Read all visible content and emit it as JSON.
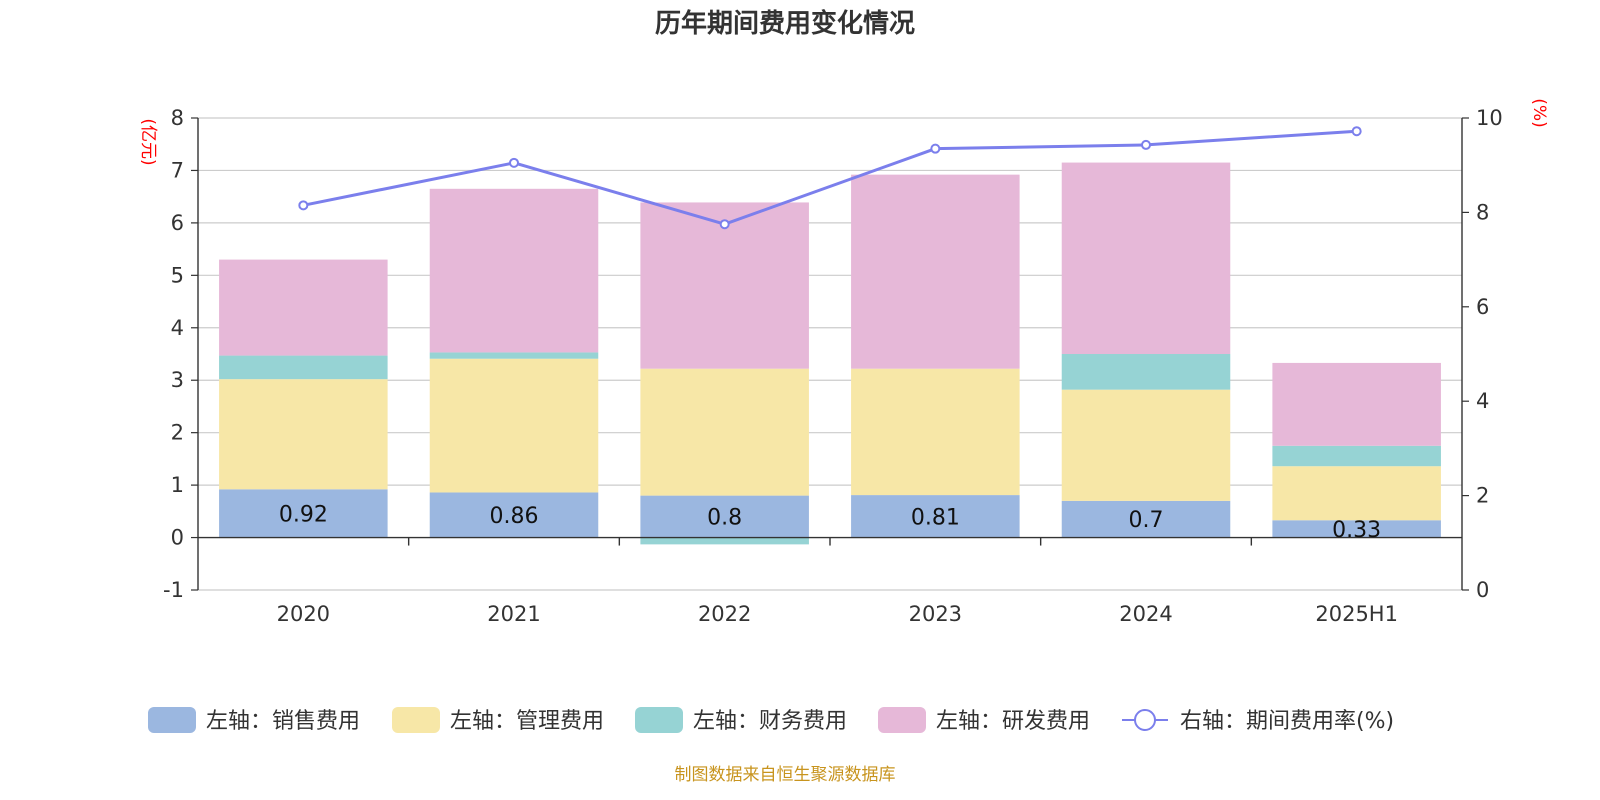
{
  "title": "历年期间费用变化情况",
  "source_note": "制图数据来自恒生聚源数据库",
  "chart_data": {
    "type": "bar",
    "stacked": true,
    "categories": [
      "2020",
      "2021",
      "2022",
      "2023",
      "2024",
      "2025H1"
    ],
    "left_axis": {
      "unit_label": "(亿元)",
      "min": -1,
      "max": 8,
      "ticks": [
        -1,
        0,
        1,
        2,
        3,
        4,
        5,
        6,
        7,
        8
      ]
    },
    "right_axis": {
      "unit_label": "(%)",
      "min": 0,
      "max": 10,
      "ticks": [
        0,
        2,
        4,
        6,
        8,
        10
      ]
    },
    "grid": true,
    "legend_position": "bottom",
    "series": [
      {
        "name": "左轴：销售费用",
        "axis": "left",
        "color": "#9bb7e0",
        "values": [
          0.92,
          0.86,
          0.8,
          0.81,
          0.7,
          0.33
        ],
        "labels": [
          "0.92",
          "0.86",
          "0.8",
          "0.81",
          "0.7",
          "0.33"
        ]
      },
      {
        "name": "左轴：管理费用",
        "axis": "left",
        "color": "#f7e7a7",
        "values": [
          2.1,
          2.55,
          2.42,
          2.41,
          2.12,
          1.03
        ]
      },
      {
        "name": "左轴：财务费用",
        "axis": "left",
        "color": "#96d3d4",
        "values": [
          0.45,
          0.12,
          -0.13,
          0.0,
          0.68,
          0.39
        ]
      },
      {
        "name": "左轴：研发费用",
        "axis": "left",
        "color": "#e6b8d8",
        "values": [
          1.83,
          3.12,
          3.17,
          3.7,
          3.65,
          1.58
        ]
      },
      {
        "name": "右轴：期间费用率(%)",
        "axis": "right",
        "type": "line",
        "color": "#7b7fec",
        "values": [
          8.15,
          9.05,
          7.75,
          9.35,
          9.43,
          9.72
        ]
      }
    ]
  }
}
